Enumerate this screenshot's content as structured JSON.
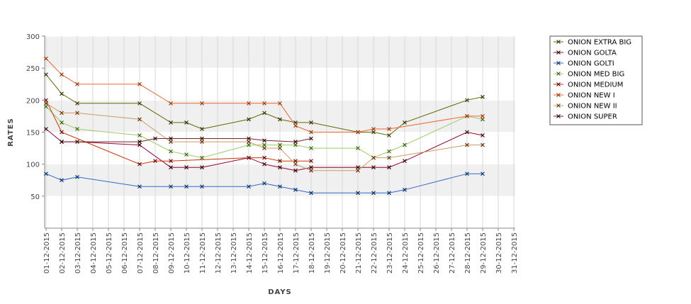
{
  "chart_data": {
    "type": "line",
    "title": "",
    "xlabel": "DAYS",
    "ylabel": "RATES",
    "ylim": [
      0,
      300
    ],
    "yticks": [
      50,
      100,
      150,
      200,
      250,
      300
    ],
    "grid": "alternating horizontal bands, vertical gridlines",
    "legend_position": "right",
    "categories": [
      "01-12-2015",
      "02-12-2015",
      "03-12-2015",
      "04-12-2015",
      "05-12-2015",
      "06-12-2015",
      "07-12-2015",
      "08-12-2015",
      "09-12-2015",
      "10-12-2015",
      "11-12-2015",
      "12-12-2015",
      "13-12-2015",
      "14-12-2015",
      "15-12-2015",
      "16-12-2015",
      "17-12-2015",
      "18-12-2015",
      "19-12-2015",
      "20-12-2015",
      "21-12-2015",
      "22-12-2015",
      "23-12-2015",
      "24-12-2015",
      "25-12-2015",
      "26-12-2015",
      "27-12-2015",
      "28-12-2015",
      "29-12-2015",
      "30-12-2015",
      "31-12-2015"
    ],
    "series": [
      {
        "name": "ONION EXTRA BIG",
        "color": "#666600",
        "marker": "#333300",
        "values": [
          240,
          210,
          195,
          null,
          null,
          null,
          195,
          null,
          165,
          165,
          155,
          null,
          null,
          170,
          180,
          170,
          165,
          165,
          null,
          null,
          150,
          150,
          145,
          165,
          null,
          null,
          null,
          200,
          205,
          null,
          null
        ]
      },
      {
        "name": "ONION GOLTA",
        "color": "#990033",
        "marker": "#330000",
        "values": [
          155,
          135,
          135,
          null,
          null,
          null,
          130,
          null,
          95,
          95,
          95,
          null,
          null,
          110,
          100,
          95,
          90,
          95,
          null,
          null,
          95,
          95,
          95,
          105,
          null,
          null,
          null,
          150,
          145,
          null,
          null
        ]
      },
      {
        "name": "ONION GOLTI",
        "color": "#3366cc",
        "marker": "#003366",
        "values": [
          85,
          75,
          80,
          null,
          null,
          null,
          65,
          null,
          65,
          65,
          65,
          null,
          null,
          65,
          70,
          65,
          60,
          55,
          null,
          null,
          55,
          55,
          55,
          60,
          null,
          null,
          null,
          85,
          85,
          null,
          null
        ]
      },
      {
        "name": "ONION MED BIG",
        "color": "#99cc66",
        "marker": "#336600",
        "values": [
          190,
          165,
          155,
          null,
          null,
          null,
          145,
          null,
          120,
          115,
          110,
          null,
          null,
          130,
          130,
          130,
          130,
          125,
          null,
          null,
          125,
          110,
          120,
          130,
          null,
          null,
          null,
          175,
          170,
          null,
          null
        ]
      },
      {
        "name": "ONION MEDIUM",
        "color": "#cc3300",
        "marker": "#660000",
        "values": [
          200,
          150,
          null,
          null,
          null,
          null,
          100,
          105,
          105,
          null,
          null,
          null,
          null,
          110,
          110,
          105,
          105,
          105,
          null,
          null,
          null,
          null,
          null,
          null,
          null,
          null,
          null,
          null,
          null,
          null,
          null
        ]
      },
      {
        "name": "ONION NEW I",
        "color": "#ee6633",
        "marker": "#993300",
        "values": [
          265,
          240,
          225,
          null,
          null,
          null,
          225,
          null,
          195,
          null,
          195,
          null,
          null,
          195,
          195,
          195,
          160,
          150,
          null,
          null,
          150,
          155,
          155,
          null,
          null,
          null,
          null,
          175,
          175,
          null,
          null
        ]
      },
      {
        "name": "ONION NEW II",
        "color": "#cc9966",
        "marker": "#663300",
        "values": [
          195,
          180,
          180,
          null,
          null,
          null,
          170,
          null,
          135,
          null,
          135,
          null,
          null,
          135,
          125,
          125,
          100,
          90,
          null,
          null,
          90,
          110,
          110,
          null,
          null,
          null,
          null,
          130,
          130,
          null,
          null
        ]
      },
      {
        "name": "ONION SUPER",
        "color": "#772222",
        "marker": "#330000",
        "values": [
          null,
          135,
          null,
          null,
          null,
          null,
          135,
          140,
          140,
          null,
          140,
          null,
          null,
          140,
          137,
          null,
          135,
          140,
          null,
          null,
          null,
          null,
          null,
          null,
          null,
          null,
          null,
          null,
          null,
          null,
          null
        ]
      }
    ]
  }
}
